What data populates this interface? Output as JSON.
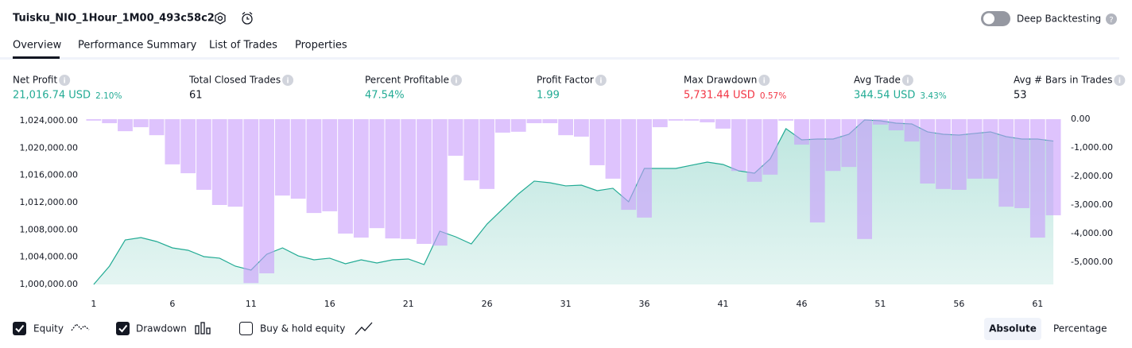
{
  "header": {
    "title": "Tuisku_NIO_1Hour_1M00_493c58c2",
    "deep_backtesting": "Deep Backtesting"
  },
  "tabs": [
    "Overview",
    "Performance Summary",
    "List of Trades",
    "Properties"
  ],
  "metrics": [
    {
      "label": "Net Profit",
      "value": "21,016.74 USD",
      "change": "2.10%"
    },
    {
      "label": "Total Closed Trades",
      "value": "61"
    },
    {
      "label": "Percent Profitable",
      "value": "47.54%"
    },
    {
      "label": "Profit Factor",
      "value": "1.99"
    },
    {
      "label": "Max Drawdown",
      "value": "5,731.44 USD",
      "change": "0.57%"
    },
    {
      "label": "Avg Trade",
      "value": "344.54 USD",
      "change": "3.43%"
    },
    {
      "label": "Avg # Bars in Trades",
      "value": "53"
    }
  ],
  "chart_data": {
    "type": "line",
    "x": [
      1,
      2,
      3,
      4,
      5,
      6,
      7,
      8,
      9,
      10,
      11,
      12,
      13,
      14,
      15,
      16,
      17,
      18,
      19,
      20,
      21,
      22,
      23,
      24,
      25,
      26,
      27,
      28,
      29,
      30,
      31,
      32,
      33,
      34,
      35,
      36,
      37,
      38,
      39,
      40,
      41,
      42,
      43,
      44,
      45,
      46,
      47,
      48,
      49,
      50,
      51,
      52,
      53,
      54,
      55,
      56,
      57,
      58,
      59,
      60,
      61,
      62
    ],
    "xlim": [
      0.5,
      62.5
    ],
    "xticks": [
      1,
      6,
      11,
      16,
      21,
      26,
      31,
      36,
      41,
      46,
      51,
      56,
      61
    ],
    "ylim": [
      1000000,
      1024230
    ],
    "yticks": [
      {
        "value": 1000000,
        "label": "1,000,000.00"
      },
      {
        "value": 1004000,
        "label": "1,004,000.00"
      },
      {
        "value": 1008000,
        "label": "1,008,000.00"
      },
      {
        "value": 1012000,
        "label": "1,012,000.00"
      },
      {
        "value": 1016000,
        "label": "1,016,000.00"
      },
      {
        "value": 1020000,
        "label": "1,020,000.00"
      },
      {
        "value": 1024000,
        "label": "1,024,000.00"
      }
    ],
    "y2lim": [
      -5778,
      0
    ],
    "y2ticks": [
      {
        "value": 0,
        "label": "0.00"
      },
      {
        "value": -1000,
        "label": "-1,000.00"
      },
      {
        "value": -2000,
        "label": "-2,000.00"
      },
      {
        "value": -3000,
        "label": "-3,000.00"
      },
      {
        "value": -4000,
        "label": "-4,000.00"
      },
      {
        "value": -5000,
        "label": "-5,000.00"
      }
    ],
    "series": [
      {
        "name": "Equity",
        "color": "#22ab94",
        "values": [
          1000000,
          1002680,
          1006520,
          1006870,
          1006290,
          1005360,
          1005010,
          1004080,
          1003850,
          1002680,
          1002100,
          1004430,
          1005360,
          1004190,
          1003610,
          1003850,
          1003030,
          1003610,
          1003150,
          1003610,
          1003730,
          1002910,
          1007810,
          1006990,
          1005940,
          1008850,
          1011070,
          1013280,
          1015150,
          1014910,
          1014450,
          1014560,
          1013750,
          1014100,
          1012120,
          1017010,
          1017010,
          1017010,
          1017480,
          1017940,
          1017590,
          1016660,
          1016310,
          1018410,
          1022840,
          1021200,
          1021320,
          1021320,
          1022020,
          1024120,
          1024000,
          1023650,
          1023530,
          1022370,
          1022020,
          1021900,
          1022140,
          1022370,
          1021670,
          1021320,
          1021320,
          1021017
        ]
      },
      {
        "name": "Drawdown",
        "type": "bar",
        "axis": "y2",
        "color": "#c89bfb",
        "values": [
          -50,
          -140,
          -420,
          -280,
          -560,
          -1580,
          -1890,
          -2470,
          -3000,
          -3060,
          -5731,
          -5390,
          -2670,
          -2780,
          -3280,
          -3220,
          -4000,
          -4140,
          -3810,
          -4170,
          -4190,
          -4360,
          -4420,
          -1280,
          -2140,
          -2440,
          -470,
          -440,
          -140,
          -140,
          -560,
          -610,
          -1610,
          -2080,
          -3170,
          -3440,
          -280,
          -50,
          -50,
          -110,
          -330,
          -1810,
          -2190,
          -1940,
          -50,
          -890,
          -3610,
          -1810,
          -1670,
          -4190,
          -190,
          -390,
          -780,
          -2250,
          -2440,
          -2470,
          -2080,
          -2080,
          -3060,
          -3110,
          -4140,
          -3360
        ]
      }
    ]
  },
  "controls": {
    "buy_hold": "Buy & hold equity",
    "absolute": "Absolute",
    "percentage": "Percentage"
  }
}
